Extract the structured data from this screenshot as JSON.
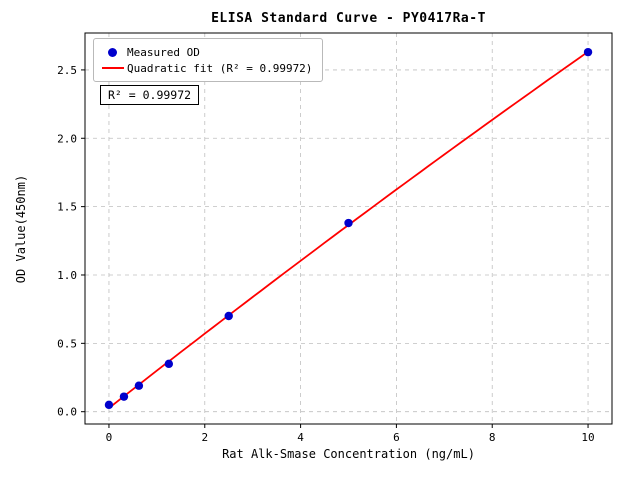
{
  "chart_data": {
    "type": "scatter",
    "title": "ELISA Standard Curve - PY0417Ra-T",
    "xlabel": "Rat Alk-Smase Concentration (ng/mL)",
    "ylabel": "OD Value(450nm)",
    "x": [
      0,
      0.313,
      0.625,
      1.25,
      2.5,
      5,
      10
    ],
    "y": [
      0.05,
      0.11,
      0.19,
      0.35,
      0.7,
      1.38,
      2.63
    ],
    "series": [
      {
        "name": "Measured OD",
        "type": "scatter",
        "color": "#0000cc"
      },
      {
        "name": "Quadratic fit (R² = 0.99972)",
        "type": "line",
        "color": "#ff0000"
      }
    ],
    "annotation": "R² = 0.99972",
    "xlim": [
      -0.5,
      10.5
    ],
    "ylim": [
      -0.09,
      2.77
    ],
    "xticks": [
      0,
      2,
      4,
      6,
      8,
      10
    ],
    "yticks": [
      0.0,
      0.5,
      1.0,
      1.5,
      2.0,
      2.5
    ],
    "grid": true,
    "grid_style": "dashed",
    "legend_position": "upper left"
  }
}
